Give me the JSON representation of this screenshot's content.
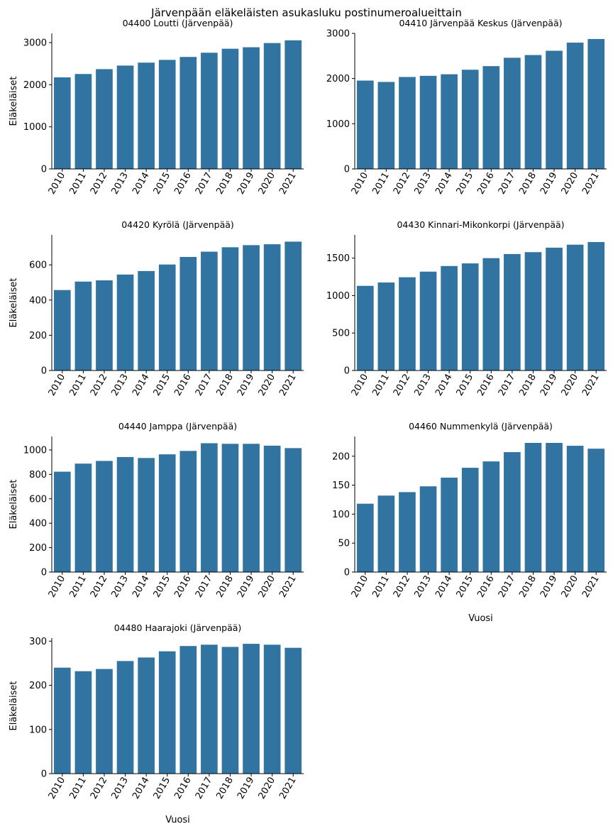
{
  "figure_title": "Järvenpään eläkeläisten asukasluku postinumeroalueittain",
  "colors": {
    "bar": "#3274a1",
    "axis": "#000000"
  },
  "chart_data": [
    {
      "type": "bar",
      "title": "04400  Loutti (Järvenpää)",
      "xlabel": "",
      "ylabel": "Eläkeläiset",
      "categories": [
        "2010",
        "2011",
        "2012",
        "2013",
        "2014",
        "2015",
        "2016",
        "2017",
        "2018",
        "2019",
        "2020",
        "2021"
      ],
      "values": [
        2175,
        2255,
        2370,
        2455,
        2525,
        2590,
        2660,
        2760,
        2855,
        2890,
        2990,
        3055
      ],
      "ylim": [
        0,
        3220
      ],
      "yticks": [
        0,
        1000,
        2000,
        3000
      ]
    },
    {
      "type": "bar",
      "title": "04410  Järvenpää Keskus (Järvenpää)",
      "xlabel": "",
      "ylabel": "",
      "categories": [
        "2010",
        "2011",
        "2012",
        "2013",
        "2014",
        "2015",
        "2016",
        "2017",
        "2018",
        "2019",
        "2020",
        "2021"
      ],
      "values": [
        1955,
        1925,
        2035,
        2060,
        2095,
        2195,
        2275,
        2460,
        2520,
        2615,
        2795,
        2875
      ],
      "ylim": [
        0,
        3000
      ],
      "yticks": [
        0,
        1000,
        2000,
        3000
      ]
    },
    {
      "type": "bar",
      "title": "04420  Kyrölä (Järvenpää)",
      "xlabel": "",
      "ylabel": "Eläkeläiset",
      "categories": [
        "2010",
        "2011",
        "2012",
        "2013",
        "2014",
        "2015",
        "2016",
        "2017",
        "2018",
        "2019",
        "2020",
        "2021"
      ],
      "values": [
        457,
        505,
        512,
        545,
        565,
        602,
        645,
        675,
        700,
        712,
        717,
        732
      ],
      "ylim": [
        0,
        770
      ],
      "yticks": [
        0,
        200,
        400,
        600
      ]
    },
    {
      "type": "bar",
      "title": "04430  Kinnari-Mikonkorpi (Järvenpää)",
      "xlabel": "",
      "ylabel": "",
      "categories": [
        "2010",
        "2011",
        "2012",
        "2013",
        "2014",
        "2015",
        "2016",
        "2017",
        "2018",
        "2019",
        "2020",
        "2021"
      ],
      "values": [
        1130,
        1175,
        1245,
        1320,
        1395,
        1430,
        1500,
        1555,
        1580,
        1640,
        1680,
        1715
      ],
      "ylim": [
        0,
        1810
      ],
      "yticks": [
        0,
        500,
        1000,
        1500
      ]
    },
    {
      "type": "bar",
      "title": "04440  Jamppa (Järvenpää)",
      "xlabel": "",
      "ylabel": "Eläkeläiset",
      "categories": [
        "2010",
        "2011",
        "2012",
        "2013",
        "2014",
        "2015",
        "2016",
        "2017",
        "2018",
        "2019",
        "2020",
        "2021"
      ],
      "values": [
        822,
        888,
        910,
        942,
        934,
        964,
        992,
        1055,
        1050,
        1050,
        1035,
        1015
      ],
      "ylim": [
        0,
        1110
      ],
      "yticks": [
        0,
        200,
        400,
        600,
        800,
        1000
      ]
    },
    {
      "type": "bar",
      "title": "04460  Nummenkylä (Järvenpää)",
      "xlabel": "Vuosi",
      "ylabel": "",
      "categories": [
        "2010",
        "2011",
        "2012",
        "2013",
        "2014",
        "2015",
        "2016",
        "2017",
        "2018",
        "2019",
        "2020",
        "2021"
      ],
      "values": [
        118,
        132,
        138,
        148,
        163,
        180,
        191,
        207,
        223,
        223,
        218,
        213
      ],
      "ylim": [
        0,
        234
      ],
      "yticks": [
        0,
        50,
        100,
        150,
        200
      ]
    },
    {
      "type": "bar",
      "title": "04480  Haarajoki (Järvenpää)",
      "xlabel": "Vuosi",
      "ylabel": "Eläkeläiset",
      "categories": [
        "2010",
        "2011",
        "2012",
        "2013",
        "2014",
        "2015",
        "2016",
        "2017",
        "2018",
        "2019",
        "2020",
        "2021"
      ],
      "values": [
        240,
        232,
        237,
        255,
        263,
        277,
        289,
        292,
        287,
        294,
        292,
        285
      ],
      "ylim": [
        0,
        307
      ],
      "yticks": [
        0,
        100,
        200,
        300
      ]
    }
  ]
}
